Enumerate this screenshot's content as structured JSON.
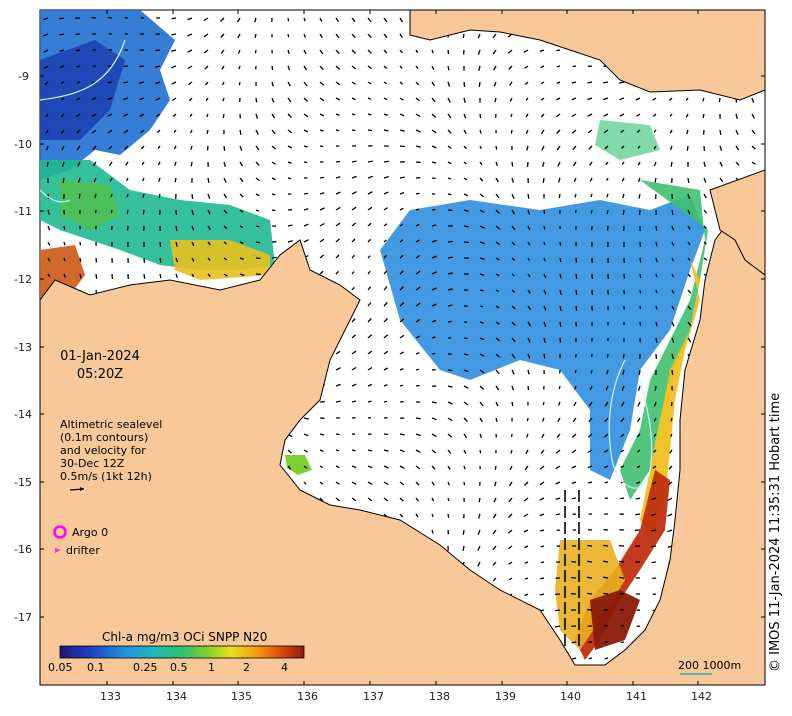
{
  "map": {
    "date": "01-Jan-2024",
    "time": "05:20Z",
    "legend_lines": [
      "Altimetric sealevel",
      "(0.1m contours)",
      "and velocity for",
      "30-Dec 12Z",
      "0.5m/s (1kt 12h)"
    ],
    "argo_label": "Argo 0",
    "drifter_label": "drifter",
    "credit": "© IMOS 11-Jan-2024 11:35:31 Hobart time",
    "scale_label": "200  1000m",
    "colorbar": {
      "title": "Chl-a mg/m3 OCi SNPP N20",
      "ticks": [
        "0.05",
        "0.1",
        "0.25",
        "0.5",
        "1",
        "2",
        "4"
      ]
    },
    "lon_ticks": [
      "133",
      "134",
      "135",
      "136",
      "137",
      "138",
      "139",
      "140",
      "141",
      "142"
    ],
    "lat_ticks": [
      "-9",
      "-10",
      "-11",
      "-12",
      "-13",
      "-14",
      "-15",
      "-16",
      "-17"
    ],
    "colors": {
      "land": "#f8c898",
      "ocean": "#ffffff",
      "argo": "#ff00ff",
      "drifter": "#ff33cc",
      "scale_bar": "#20b2aa"
    }
  }
}
